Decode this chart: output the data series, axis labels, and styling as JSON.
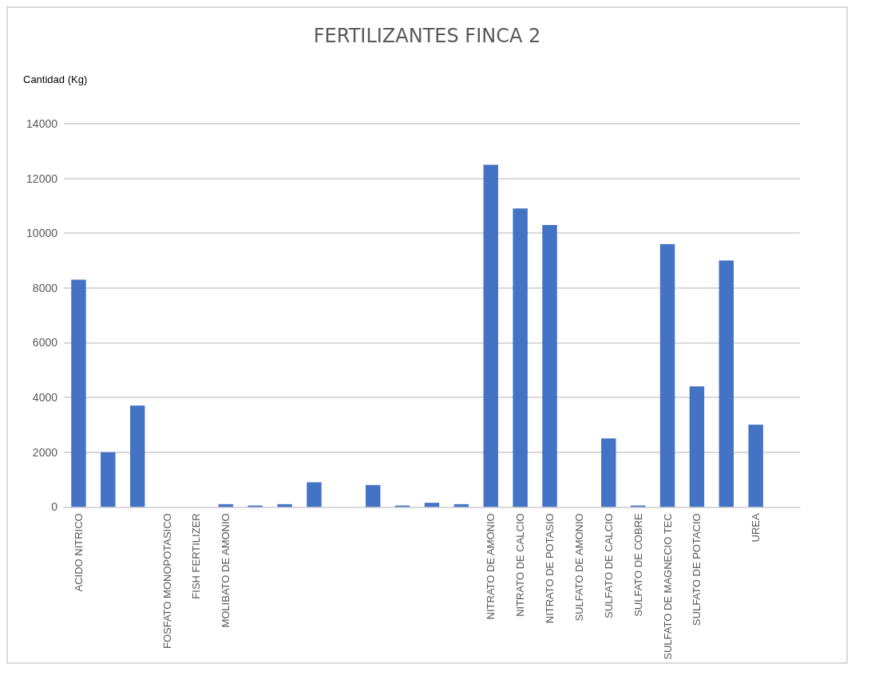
{
  "chart_data": {
    "type": "bar",
    "title": "FERTILIZANTES FINCA 2",
    "ylabel": "Cantidad (Kg)",
    "categories": [
      "ACIDO NITRICO",
      null,
      null,
      "FOSFATO MONOPOTASICO",
      "FISH FERTILIZER",
      "MOLIBATO DE AMONIO",
      null,
      null,
      null,
      null,
      null,
      null,
      null,
      null,
      "NITRATO DE AMONIO",
      "NITRATO DE CALCIO",
      "NITRATO DE POTASIO",
      "SULFATO DE AMONIO",
      "SULFATO DE CALCIO",
      "SULFATO DE COBRE",
      "SULFATO DE MAGNECIO TEC",
      "SULFATO DE POTACIO",
      null,
      "UREA",
      null
    ],
    "values": [
      8300,
      2000,
      3700,
      null,
      null,
      100,
      50,
      100,
      900,
      null,
      800,
      50,
      150,
      100,
      12500,
      10900,
      10300,
      null,
      2500,
      50,
      9600,
      4400,
      9000,
      3000,
      null
    ],
    "color": "#4472c4",
    "ylim": [
      0,
      14000
    ],
    "yticks": [
      0,
      2000,
      4000,
      6000,
      8000,
      10000,
      12000,
      14000
    ],
    "grid": "y"
  }
}
